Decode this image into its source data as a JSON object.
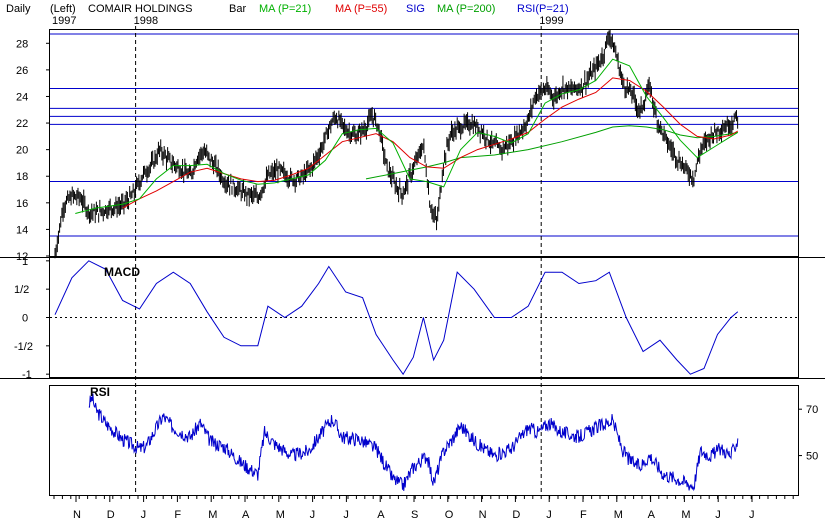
{
  "header": {
    "period": "Daily",
    "axis_side": "(Left)",
    "start_year": "1997",
    "title": "COMAIR HOLDINGS",
    "chart_kind": "Bar",
    "legend": [
      {
        "label": "MA (P=21)",
        "color": "#00b000"
      },
      {
        "label": "MA (P=55)",
        "color": "#e00000"
      },
      {
        "label": "SIG",
        "color": "#0000cc"
      },
      {
        "label": "MA (P=200)",
        "color": "#00a000"
      },
      {
        "label": "RSI(P=21)",
        "color": "#0000cc"
      }
    ]
  },
  "colors": {
    "price_bars": "#000000",
    "ma21": "#00b000",
    "ma55": "#e00000",
    "ma200": "#00a000",
    "indicator": "#0000cc",
    "hlines": "#0000cc",
    "grid_dash": "#000000"
  },
  "chart_data": [
    {
      "type": "bar",
      "panel": "price",
      "title": "COMAIR HOLDINGS",
      "ylim": [
        12,
        29
      ],
      "yticks": [
        12,
        14,
        16,
        18,
        20,
        22,
        24,
        26,
        28
      ],
      "year_labels": [
        {
          "label": "1998",
          "month_index": 2
        },
        {
          "label": "1999",
          "month_index": 14
        }
      ],
      "horizontal_levels": [
        13.5,
        17.6,
        21.9,
        22.5,
        23.1,
        24.6,
        28.7
      ],
      "close_series": [
        [
          0,
          12.1
        ],
        [
          0.25,
          15.8
        ],
        [
          0.5,
          16.5
        ],
        [
          0.75,
          16.4
        ],
        [
          1,
          15.3
        ],
        [
          1.3,
          15.3
        ],
        [
          1.6,
          15.6
        ],
        [
          2,
          15.8
        ],
        [
          2.3,
          16.6
        ],
        [
          2.6,
          18.1
        ],
        [
          2.9,
          19.0
        ],
        [
          3.1,
          20.0
        ],
        [
          3.4,
          19.1
        ],
        [
          3.7,
          18.6
        ],
        [
          4,
          18.0
        ],
        [
          4.2,
          19.4
        ],
        [
          4.4,
          19.9
        ],
        [
          4.7,
          18.9
        ],
        [
          5,
          17.7
        ],
        [
          5.3,
          17.2
        ],
        [
          5.6,
          16.7
        ],
        [
          6,
          16.4
        ],
        [
          6.3,
          18.0
        ],
        [
          6.6,
          18.5
        ],
        [
          7,
          17.8
        ],
        [
          7.3,
          17.9
        ],
        [
          7.6,
          18.7
        ],
        [
          7.9,
          20.2
        ],
        [
          8.1,
          21.6
        ],
        [
          8.3,
          22.5
        ],
        [
          8.6,
          21.5
        ],
        [
          8.9,
          21.0
        ],
        [
          9.2,
          21.7
        ],
        [
          9.4,
          22.6
        ],
        [
          9.6,
          21.5
        ],
        [
          9.8,
          18.8
        ],
        [
          10.1,
          17.2
        ],
        [
          10.3,
          16.7
        ],
        [
          10.5,
          18.0
        ],
        [
          10.7,
          19.2
        ],
        [
          10.9,
          20.4
        ],
        [
          11.1,
          15.8
        ],
        [
          11.3,
          14.5
        ],
        [
          11.5,
          19.1
        ],
        [
          11.7,
          21.2
        ],
        [
          12,
          21.7
        ],
        [
          12.3,
          22.0
        ],
        [
          12.6,
          21.5
        ],
        [
          12.9,
          20.5
        ],
        [
          13.2,
          20.0
        ],
        [
          13.5,
          20.6
        ],
        [
          13.8,
          21.5
        ],
        [
          14,
          22.2
        ],
        [
          14.2,
          24.0
        ],
        [
          14.5,
          24.6
        ],
        [
          14.8,
          23.9
        ],
        [
          15,
          24.7
        ],
        [
          15.3,
          24.5
        ],
        [
          15.6,
          24.8
        ],
        [
          15.9,
          25.8
        ],
        [
          16.2,
          27.0
        ],
        [
          16.4,
          28.7
        ],
        [
          16.6,
          27.2
        ],
        [
          16.8,
          25.0
        ],
        [
          17.1,
          24.1
        ],
        [
          17.3,
          22.8
        ],
        [
          17.6,
          24.8
        ],
        [
          17.8,
          22.3
        ],
        [
          18.1,
          20.6
        ],
        [
          18.4,
          19.4
        ],
        [
          18.7,
          18.4
        ],
        [
          18.9,
          17.9
        ],
        [
          19.1,
          20.0
        ],
        [
          19.4,
          21.1
        ],
        [
          19.7,
          21.6
        ],
        [
          20,
          22.0
        ],
        [
          20.2,
          22.5
        ]
      ],
      "ma21": [
        [
          0.6,
          15.2
        ],
        [
          1.2,
          15.6
        ],
        [
          2,
          15.9
        ],
        [
          2.5,
          16.3
        ],
        [
          3,
          17.8
        ],
        [
          3.5,
          18.8
        ],
        [
          4,
          18.8
        ],
        [
          4.5,
          18.9
        ],
        [
          5,
          18.2
        ],
        [
          5.5,
          17.7
        ],
        [
          6,
          17.4
        ],
        [
          6.5,
          17.5
        ],
        [
          7,
          17.8
        ],
        [
          7.5,
          18.1
        ],
        [
          8,
          19.2
        ],
        [
          8.5,
          21.2
        ],
        [
          9,
          21.5
        ],
        [
          9.5,
          21.6
        ],
        [
          10,
          20.5
        ],
        [
          10.5,
          17.8
        ],
        [
          11,
          17.6
        ],
        [
          11.5,
          17.2
        ],
        [
          12,
          20.0
        ],
        [
          12.5,
          21.3
        ],
        [
          13,
          21.0
        ],
        [
          13.5,
          20.5
        ],
        [
          14,
          21.2
        ],
        [
          14.5,
          23.5
        ],
        [
          15,
          24.2
        ],
        [
          15.5,
          24.5
        ],
        [
          16,
          25.2
        ],
        [
          16.5,
          26.8
        ],
        [
          17,
          26.3
        ],
        [
          17.5,
          24.0
        ],
        [
          18,
          22.4
        ],
        [
          18.5,
          20.7
        ],
        [
          19,
          19.4
        ],
        [
          19.5,
          20.2
        ],
        [
          20,
          21.0
        ],
        [
          20.2,
          21.3
        ]
      ],
      "ma55": [
        [
          2,
          15.6
        ],
        [
          2.5,
          16.3
        ],
        [
          3,
          16.9
        ],
        [
          3.5,
          17.6
        ],
        [
          4,
          18.3
        ],
        [
          4.5,
          18.6
        ],
        [
          5,
          18.2
        ],
        [
          5.5,
          17.8
        ],
        [
          6,
          17.6
        ],
        [
          6.5,
          17.7
        ],
        [
          7,
          18.1
        ],
        [
          7.5,
          18.6
        ],
        [
          8,
          19.6
        ],
        [
          8.5,
          20.6
        ],
        [
          9,
          20.9
        ],
        [
          9.5,
          21.2
        ],
        [
          10,
          20.6
        ],
        [
          10.5,
          19.4
        ],
        [
          11,
          18.7
        ],
        [
          11.5,
          18.6
        ],
        [
          12,
          19.4
        ],
        [
          12.5,
          20.0
        ],
        [
          13,
          20.4
        ],
        [
          13.5,
          20.8
        ],
        [
          14,
          21.3
        ],
        [
          14.5,
          22.3
        ],
        [
          15,
          23.2
        ],
        [
          15.5,
          23.8
        ],
        [
          16,
          24.3
        ],
        [
          16.5,
          25.4
        ],
        [
          17,
          25.2
        ],
        [
          17.5,
          24.4
        ],
        [
          18,
          23.2
        ],
        [
          18.5,
          21.9
        ],
        [
          19,
          21.0
        ],
        [
          19.5,
          20.8
        ],
        [
          20,
          21.1
        ],
        [
          20.2,
          21.4
        ]
      ],
      "ma200": [
        [
          9.2,
          17.8
        ],
        [
          10,
          18.2
        ],
        [
          11,
          18.7
        ],
        [
          11.5,
          19.0
        ],
        [
          12,
          19.4
        ],
        [
          13,
          19.6
        ],
        [
          14,
          20.0
        ],
        [
          15,
          20.6
        ],
        [
          16,
          21.3
        ],
        [
          16.5,
          21.7
        ],
        [
          17,
          21.8
        ],
        [
          17.5,
          21.7
        ],
        [
          18,
          21.5
        ],
        [
          18.5,
          21.1
        ],
        [
          19,
          20.9
        ],
        [
          19.5,
          21.0
        ],
        [
          20,
          21.2
        ],
        [
          20.2,
          21.3
        ]
      ]
    },
    {
      "type": "line",
      "panel": "macd",
      "title": "MACD",
      "ylim": [
        -1.05,
        1.05
      ],
      "ytick_labels": [
        {
          "value": 1,
          "label": "1"
        },
        {
          "value": 0.5,
          "label": "1/2"
        },
        {
          "value": 0,
          "label": "0"
        },
        {
          "value": -0.5,
          "label": "-1/2"
        },
        {
          "value": -1,
          "label": "-1"
        }
      ],
      "zero_line": 0,
      "series": [
        [
          0,
          0.05
        ],
        [
          0.5,
          0.7
        ],
        [
          1,
          1.0
        ],
        [
          1.5,
          0.85
        ],
        [
          2,
          0.3
        ],
        [
          2.5,
          0.15
        ],
        [
          3,
          0.6
        ],
        [
          3.5,
          0.8
        ],
        [
          4,
          0.6
        ],
        [
          4.5,
          0.1
        ],
        [
          5,
          -0.35
        ],
        [
          5.5,
          -0.5
        ],
        [
          6,
          -0.5
        ],
        [
          6.3,
          0.2
        ],
        [
          6.8,
          0.0
        ],
        [
          7.3,
          0.2
        ],
        [
          7.8,
          0.6
        ],
        [
          8.1,
          0.9
        ],
        [
          8.6,
          0.45
        ],
        [
          9.1,
          0.35
        ],
        [
          9.5,
          -0.3
        ],
        [
          10,
          -0.75
        ],
        [
          10.3,
          -1.0
        ],
        [
          10.6,
          -0.7
        ],
        [
          10.9,
          0.0
        ],
        [
          11.2,
          -0.75
        ],
        [
          11.5,
          -0.4
        ],
        [
          11.9,
          0.8
        ],
        [
          12.4,
          0.5
        ],
        [
          13,
          0.0
        ],
        [
          13.5,
          0.0
        ],
        [
          14,
          0.2
        ],
        [
          14.5,
          0.8
        ],
        [
          15,
          0.8
        ],
        [
          15.5,
          0.6
        ],
        [
          16,
          0.65
        ],
        [
          16.4,
          0.8
        ],
        [
          16.9,
          0.0
        ],
        [
          17.4,
          -0.6
        ],
        [
          17.9,
          -0.4
        ],
        [
          18.4,
          -0.75
        ],
        [
          18.8,
          -1.0
        ],
        [
          19.2,
          -0.9
        ],
        [
          19.6,
          -0.3
        ],
        [
          20,
          0.0
        ],
        [
          20.2,
          0.1
        ]
      ]
    },
    {
      "type": "line",
      "panel": "rsi",
      "title": "RSI",
      "ylim": [
        33,
        80
      ],
      "yticks": [
        50,
        70
      ],
      "series": [
        [
          1,
          72
        ],
        [
          1.1,
          75
        ],
        [
          1.2,
          70
        ],
        [
          1.5,
          64
        ],
        [
          2,
          57
        ],
        [
          2.5,
          53
        ],
        [
          2.7,
          54
        ],
        [
          3,
          62
        ],
        [
          3.2,
          67
        ],
        [
          3.5,
          62
        ],
        [
          4,
          58
        ],
        [
          4.3,
          64
        ],
        [
          4.6,
          56
        ],
        [
          5,
          54
        ],
        [
          5.5,
          47
        ],
        [
          6,
          42
        ],
        [
          6.2,
          60
        ],
        [
          6.5,
          55
        ],
        [
          7,
          50
        ],
        [
          7.5,
          52
        ],
        [
          8,
          62
        ],
        [
          8.2,
          66
        ],
        [
          8.5,
          58
        ],
        [
          9,
          57
        ],
        [
          9.5,
          53
        ],
        [
          10,
          40
        ],
        [
          10.3,
          37
        ],
        [
          10.6,
          45
        ],
        [
          11,
          50
        ],
        [
          11.2,
          38
        ],
        [
          11.5,
          52
        ],
        [
          11.8,
          58
        ],
        [
          12,
          63
        ],
        [
          12.5,
          55
        ],
        [
          13,
          50
        ],
        [
          13.5,
          53
        ],
        [
          14,
          62
        ],
        [
          14.3,
          60
        ],
        [
          14.6,
          64
        ],
        [
          15,
          60
        ],
        [
          15.5,
          58
        ],
        [
          16,
          62
        ],
        [
          16.5,
          65
        ],
        [
          16.8,
          52
        ],
        [
          17,
          48
        ],
        [
          17.3,
          45
        ],
        [
          17.6,
          50
        ],
        [
          18,
          42
        ],
        [
          18.4,
          40
        ],
        [
          18.7,
          38
        ],
        [
          18.9,
          37
        ],
        [
          19.1,
          52
        ],
        [
          19.4,
          50
        ],
        [
          19.7,
          53
        ],
        [
          20,
          50
        ],
        [
          20.2,
          57
        ]
      ]
    }
  ],
  "month_labels": [
    "N",
    "D",
    "J",
    "F",
    "M",
    "A",
    "M",
    "J",
    "J",
    "A",
    "S",
    "O",
    "N",
    "D",
    "J",
    "F",
    "M",
    "A",
    "M",
    "J",
    "J"
  ]
}
